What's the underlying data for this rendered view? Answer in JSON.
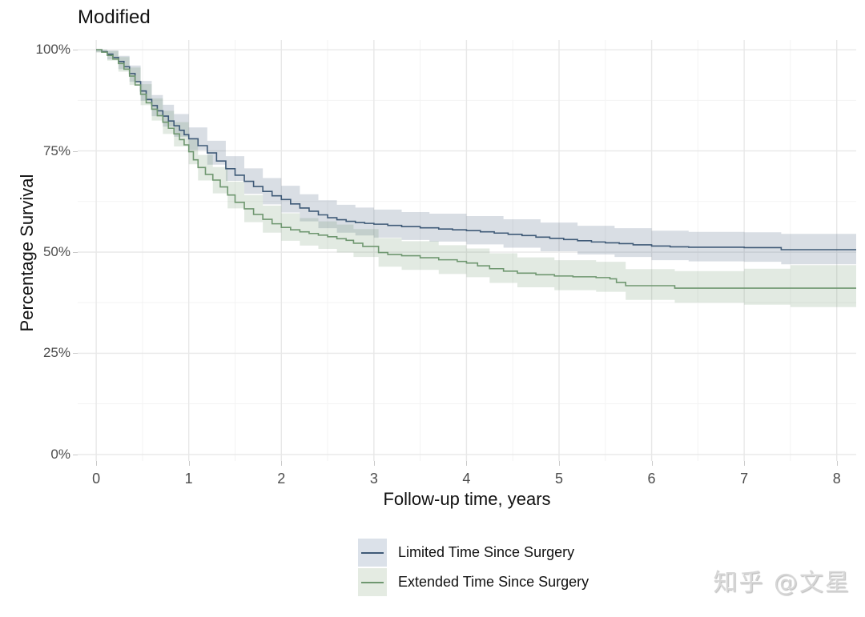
{
  "title": "Modified",
  "watermark": "知乎 @文星",
  "x_axis": {
    "label": "Follow-up time, years",
    "tick_labels": [
      "0",
      "1",
      "2",
      "3",
      "4",
      "5",
      "6",
      "7",
      "8"
    ]
  },
  "y_axis": {
    "label": "Percentage Survival",
    "tick_labels": [
      "100%",
      "75%",
      "50%",
      "25%",
      "0%"
    ],
    "tick_values": [
      100,
      75,
      50,
      25,
      0
    ]
  },
  "legend": {
    "position": "bottom-center",
    "items": [
      {
        "label": "Limited Time Since Surgery",
        "line_color": "#3f5a77",
        "swatch_fill": "#dbe1e9"
      },
      {
        "label": "Extended Time Since Surgery",
        "line_color": "#6f9770",
        "swatch_fill": "#e4ebe2"
      }
    ]
  },
  "colors": {
    "background": "#ffffff",
    "grid_major": "#e8e8e8",
    "grid_minor": "#f3f3f3",
    "tick_text": "#4d4d4d",
    "tick_mark": "#c9c9c9"
  },
  "chart_data": {
    "type": "line",
    "subtype": "kaplan_meier_step_curves_with_confidence_bands",
    "title": "Modified",
    "xlabel": "Follow-up time, years",
    "ylabel": "Percentage Survival",
    "xlim": [
      -0.2,
      8.21
    ],
    "ylim": [
      -1.6,
      102.4
    ],
    "x_major_ticks": [
      0,
      1,
      2,
      3,
      4,
      5,
      6,
      7,
      8
    ],
    "x_minor_ticks": [
      0.5,
      1.5,
      2.5,
      3.5,
      4.5,
      5.5,
      6.5,
      7.5
    ],
    "y_major_ticks": [
      0,
      25,
      50,
      75,
      100
    ],
    "y_minor_ticks": [
      12.5,
      37.5,
      62.5,
      87.5
    ],
    "grid": "major and minor, light gray on white",
    "legend_position": "bottom center",
    "units": {
      "x": "years",
      "y": "percent surviving"
    },
    "series": [
      {
        "name": "Limited Time Since Surgery",
        "line_color": "#3f5a77",
        "band_color": "rgba(63,90,119,0.20)",
        "steps": [
          [
            0,
            100
          ],
          [
            0.06,
            99.5
          ],
          [
            0.12,
            98.9
          ],
          [
            0.18,
            98.1
          ],
          [
            0.24,
            97.1
          ],
          [
            0.3,
            95.8
          ],
          [
            0.36,
            94.1
          ],
          [
            0.42,
            92.1
          ],
          [
            0.48,
            89.8
          ],
          [
            0.54,
            87.7
          ],
          [
            0.6,
            86.2
          ],
          [
            0.66,
            84.9
          ],
          [
            0.72,
            83.6
          ],
          [
            0.78,
            82.4
          ],
          [
            0.84,
            81.2
          ],
          [
            0.9,
            80.1
          ],
          [
            0.95,
            79.0
          ],
          [
            1.0,
            78.0
          ],
          [
            1.1,
            76.3
          ],
          [
            1.2,
            74.5
          ],
          [
            1.3,
            72.5
          ],
          [
            1.4,
            70.6
          ],
          [
            1.5,
            69.0
          ],
          [
            1.6,
            67.5
          ],
          [
            1.7,
            66.2
          ],
          [
            1.8,
            65.0
          ],
          [
            1.9,
            63.9
          ],
          [
            2.0,
            63.0
          ],
          [
            2.1,
            61.9
          ],
          [
            2.2,
            60.9
          ],
          [
            2.3,
            60.1
          ],
          [
            2.4,
            59.2
          ],
          [
            2.5,
            58.5
          ],
          [
            2.6,
            58.0
          ],
          [
            2.7,
            57.6
          ],
          [
            2.8,
            57.3
          ],
          [
            2.9,
            57.1
          ],
          [
            3.0,
            56.9
          ],
          [
            3.15,
            56.6
          ],
          [
            3.3,
            56.3
          ],
          [
            3.5,
            56.0
          ],
          [
            3.7,
            55.7
          ],
          [
            3.85,
            55.5
          ],
          [
            4.0,
            55.3
          ],
          [
            4.15,
            55.0
          ],
          [
            4.3,
            54.7
          ],
          [
            4.45,
            54.4
          ],
          [
            4.6,
            54.1
          ],
          [
            4.75,
            53.7
          ],
          [
            4.9,
            53.4
          ],
          [
            5.05,
            53.1
          ],
          [
            5.2,
            52.8
          ],
          [
            5.35,
            52.5
          ],
          [
            5.5,
            52.3
          ],
          [
            5.65,
            52.1
          ],
          [
            5.8,
            51.8
          ],
          [
            6.0,
            51.5
          ],
          [
            6.2,
            51.3
          ],
          [
            6.4,
            51.2
          ],
          [
            7.0,
            51.1
          ],
          [
            7.4,
            50.6
          ],
          [
            8.21,
            50.6
          ]
        ],
        "ci": [
          [
            0,
            99.4,
            100
          ],
          [
            0.12,
            97.6,
            99.8
          ],
          [
            0.24,
            95.2,
            98.5
          ],
          [
            0.36,
            92.1,
            96.1
          ],
          [
            0.48,
            87.4,
            92.3
          ],
          [
            0.6,
            83.6,
            88.8
          ],
          [
            0.72,
            81.0,
            86.4
          ],
          [
            0.84,
            78.5,
            84.1
          ],
          [
            1.0,
            75.2,
            80.8
          ],
          [
            1.2,
            71.6,
            77.5
          ],
          [
            1.4,
            67.6,
            73.7
          ],
          [
            1.6,
            64.4,
            70.7
          ],
          [
            1.8,
            61.8,
            68.3
          ],
          [
            2.0,
            59.8,
            66.4
          ],
          [
            2.2,
            57.6,
            64.3
          ],
          [
            2.4,
            55.9,
            62.8
          ],
          [
            2.6,
            54.8,
            61.7
          ],
          [
            2.8,
            54.1,
            61.0
          ],
          [
            3.0,
            53.6,
            60.5
          ],
          [
            3.3,
            53.0,
            59.9
          ],
          [
            3.6,
            52.6,
            59.5
          ],
          [
            4.0,
            51.9,
            58.9
          ],
          [
            4.4,
            51.1,
            58.1
          ],
          [
            4.8,
            50.2,
            57.3
          ],
          [
            5.2,
            49.4,
            56.5
          ],
          [
            5.6,
            48.8,
            55.9
          ],
          [
            6.0,
            48.0,
            55.3
          ],
          [
            6.4,
            47.7,
            55.0
          ],
          [
            7.0,
            47.6,
            54.9
          ],
          [
            7.4,
            47.0,
            54.5
          ],
          [
            8.21,
            47.0,
            54.5
          ]
        ]
      },
      {
        "name": "Extended Time Since Surgery",
        "line_color": "#6f9770",
        "band_color": "rgba(111,151,112,0.20)",
        "steps": [
          [
            0,
            100
          ],
          [
            0.06,
            99.4
          ],
          [
            0.12,
            98.6
          ],
          [
            0.18,
            97.7
          ],
          [
            0.24,
            96.6
          ],
          [
            0.3,
            95.2
          ],
          [
            0.36,
            93.5
          ],
          [
            0.42,
            91.3
          ],
          [
            0.48,
            89.0
          ],
          [
            0.54,
            86.9
          ],
          [
            0.6,
            85.3
          ],
          [
            0.66,
            83.7
          ],
          [
            0.72,
            82.1
          ],
          [
            0.78,
            80.6
          ],
          [
            0.84,
            79.2
          ],
          [
            0.9,
            77.8
          ],
          [
            0.95,
            76.5
          ],
          [
            1.0,
            74.8
          ],
          [
            1.05,
            72.8
          ],
          [
            1.1,
            70.9
          ],
          [
            1.18,
            69.2
          ],
          [
            1.26,
            67.8
          ],
          [
            1.34,
            66.1
          ],
          [
            1.42,
            64.1
          ],
          [
            1.5,
            62.3
          ],
          [
            1.6,
            60.7
          ],
          [
            1.7,
            59.3
          ],
          [
            1.8,
            58.1
          ],
          [
            1.9,
            57.0
          ],
          [
            2.0,
            56.1
          ],
          [
            2.1,
            55.5
          ],
          [
            2.2,
            55.0
          ],
          [
            2.3,
            54.6
          ],
          [
            2.4,
            54.2
          ],
          [
            2.5,
            53.8
          ],
          [
            2.6,
            53.3
          ],
          [
            2.7,
            52.9
          ],
          [
            2.78,
            52.2
          ],
          [
            2.88,
            51.4
          ],
          [
            3.05,
            49.9
          ],
          [
            3.15,
            49.4
          ],
          [
            3.3,
            49.1
          ],
          [
            3.5,
            48.6
          ],
          [
            3.7,
            48.1
          ],
          [
            3.9,
            47.7
          ],
          [
            4.0,
            47.3
          ],
          [
            4.12,
            46.6
          ],
          [
            4.25,
            45.9
          ],
          [
            4.4,
            45.3
          ],
          [
            4.55,
            44.8
          ],
          [
            4.75,
            44.4
          ],
          [
            4.95,
            44.1
          ],
          [
            5.15,
            43.9
          ],
          [
            5.4,
            43.7
          ],
          [
            5.55,
            43.4
          ],
          [
            5.62,
            42.5
          ],
          [
            5.72,
            41.7
          ],
          [
            6.25,
            41.1
          ],
          [
            8.21,
            41.1
          ]
        ],
        "ci": [
          [
            0,
            99.3,
            100
          ],
          [
            0.12,
            97.3,
            99.7
          ],
          [
            0.24,
            94.6,
            98.2
          ],
          [
            0.36,
            91.3,
            95.6
          ],
          [
            0.48,
            86.3,
            91.5
          ],
          [
            0.6,
            82.5,
            88.0
          ],
          [
            0.72,
            79.2,
            84.9
          ],
          [
            0.84,
            76.1,
            82.1
          ],
          [
            1.0,
            71.7,
            77.8
          ],
          [
            1.1,
            67.7,
            74.0
          ],
          [
            1.26,
            64.5,
            71.0
          ],
          [
            1.42,
            60.8,
            67.4
          ],
          [
            1.6,
            57.4,
            64.1
          ],
          [
            1.8,
            54.8,
            61.5
          ],
          [
            2.0,
            52.8,
            59.6
          ],
          [
            2.2,
            51.6,
            58.4
          ],
          [
            2.4,
            50.8,
            57.6
          ],
          [
            2.6,
            49.9,
            56.8
          ],
          [
            2.78,
            48.8,
            55.7
          ],
          [
            3.05,
            46.4,
            53.5
          ],
          [
            3.3,
            45.6,
            52.7
          ],
          [
            3.7,
            44.6,
            51.7
          ],
          [
            4.0,
            43.8,
            50.9
          ],
          [
            4.25,
            42.4,
            49.7
          ],
          [
            4.55,
            41.3,
            48.7
          ],
          [
            4.95,
            40.6,
            48.0
          ],
          [
            5.4,
            40.2,
            47.6
          ],
          [
            5.72,
            38.2,
            45.8
          ],
          [
            6.25,
            37.5,
            45.3
          ],
          [
            7.0,
            37.0,
            45.9
          ],
          [
            7.5,
            36.4,
            46.8
          ],
          [
            8.21,
            36.4,
            47.5
          ]
        ]
      }
    ]
  }
}
